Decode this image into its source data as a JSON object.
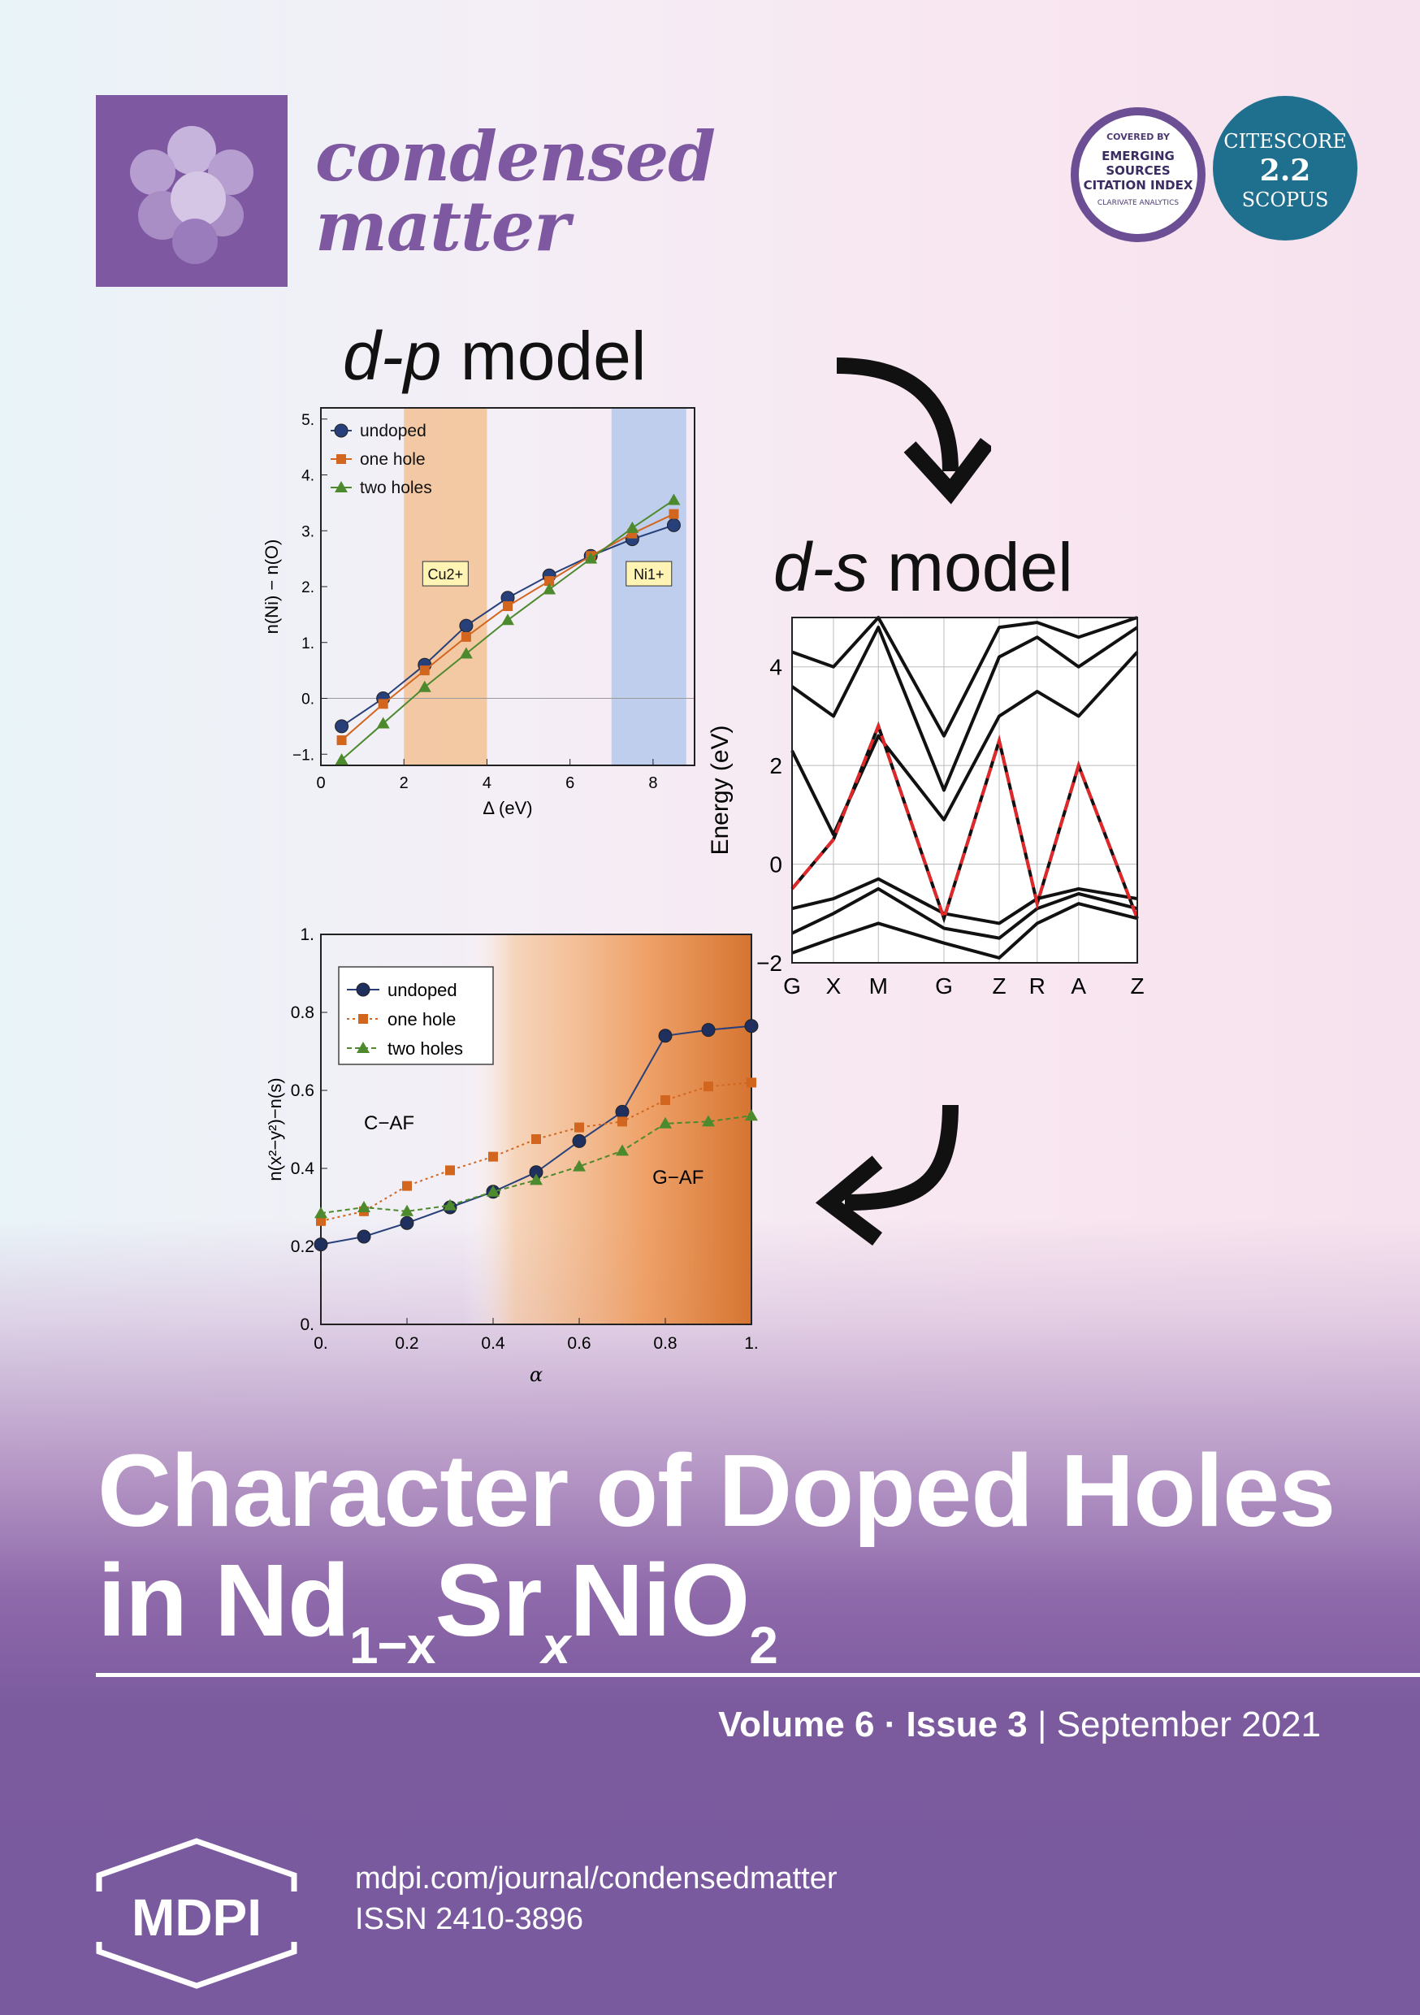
{
  "journal": {
    "name_line1": "condensed",
    "name_line2": "matter"
  },
  "badges": {
    "esci": {
      "top": "COVERED BY",
      "l1": "EMERGING",
      "l2": "SOURCES",
      "l3": "CITATION INDEX",
      "bottom": "CLARIVATE ANALYTICS"
    },
    "citescore": {
      "label": "CITESCORE",
      "value": "2.2",
      "source": "SCOPUS"
    }
  },
  "panels": {
    "dp_title_italic": "d-p",
    "dp_title_rest": " model",
    "ds_title_italic": "d-s",
    "ds_title_rest": " model"
  },
  "chart_data": [
    {
      "type": "line",
      "title": "d-p model",
      "xlabel": "Δ (eV)",
      "ylabel": "n(Ni) − n(O)",
      "xlim": [
        0,
        9
      ],
      "ylim": [
        -1.2,
        5.2
      ],
      "xticks": [
        "0",
        "2",
        "4",
        "6",
        "8"
      ],
      "yticks": [
        "−1.",
        "0.",
        "1.",
        "2.",
        "3.",
        "4.",
        "5."
      ],
      "x": [
        0.5,
        1.5,
        2.5,
        3.5,
        4.5,
        5.5,
        6.5,
        7.5,
        8.5
      ],
      "series": [
        {
          "name": "undoped",
          "color": "#27407a",
          "marker": "circle",
          "values": [
            -0.5,
            0.0,
            0.6,
            1.3,
            1.8,
            2.2,
            2.55,
            2.85,
            3.1
          ]
        },
        {
          "name": "one hole",
          "color": "#d2661f",
          "marker": "square",
          "values": [
            -0.75,
            -0.1,
            0.5,
            1.1,
            1.65,
            2.1,
            2.55,
            2.95,
            3.3
          ]
        },
        {
          "name": "two holes",
          "color": "#4d8a2e",
          "marker": "triangle",
          "values": [
            -1.1,
            -0.45,
            0.2,
            0.8,
            1.4,
            1.95,
            2.5,
            3.05,
            3.55
          ]
        }
      ],
      "regions": [
        {
          "label": "Cu2+",
          "from": 2,
          "to": 4,
          "color": "#f2c295"
        },
        {
          "label": "Ni1+",
          "from": 7,
          "to": 8.8,
          "color": "#b6c9ec"
        }
      ]
    },
    {
      "type": "line",
      "title": "d-s model",
      "ylabel": "Energy (eV)",
      "ylim": [
        -2,
        5
      ],
      "yticks": [
        "4",
        "2",
        "0",
        "−2"
      ],
      "xticks": [
        "G",
        "X",
        "M",
        "G",
        "Z",
        "R",
        "A",
        "Z"
      ],
      "series": [
        {
          "name": "bands",
          "color": "#111111"
        },
        {
          "name": "fit",
          "color": "#e0282a",
          "style": "dashed"
        }
      ]
    },
    {
      "type": "line",
      "xlabel": "α",
      "ylabel": "n(x²−y²)−n(s)",
      "xlim": [
        0,
        1
      ],
      "ylim": [
        0,
        1
      ],
      "xticks": [
        "0.",
        "0.2",
        "0.4",
        "0.6",
        "0.8",
        "1."
      ],
      "yticks": [
        "0.",
        "0.2",
        "0.4",
        "0.6",
        "0.8",
        "1."
      ],
      "x": [
        0,
        0.1,
        0.2,
        0.3,
        0.4,
        0.5,
        0.6,
        0.7,
        0.8,
        0.9,
        1.0
      ],
      "series": [
        {
          "name": "undoped",
          "color": "#27407a",
          "marker": "circle",
          "values": [
            0.205,
            0.225,
            0.26,
            0.3,
            0.34,
            0.39,
            0.47,
            0.545,
            0.74,
            0.755,
            0.765
          ]
        },
        {
          "name": "one hole",
          "color": "#d2661f",
          "marker": "square",
          "values": [
            0.265,
            0.29,
            0.355,
            0.395,
            0.43,
            0.475,
            0.505,
            0.52,
            0.575,
            0.61,
            0.62
          ]
        },
        {
          "name": "two holes",
          "color": "#4d8a2e",
          "marker": "triangle",
          "values": [
            0.285,
            0.3,
            0.29,
            0.305,
            0.34,
            0.37,
            0.405,
            0.445,
            0.515,
            0.52,
            0.535
          ]
        }
      ],
      "annotations": [
        "C−AF",
        "G−AF"
      ]
    }
  ],
  "article": {
    "title_line1": "Character of Doped Holes",
    "title_in": "in Nd",
    "sub1": "1−x",
    "sr": "Sr",
    "sub2": "x",
    "nio": "NiO",
    "sub3": "2"
  },
  "issue": {
    "volume": "Volume 6",
    "sep": " · ",
    "number": "Issue 3",
    "bar": " | ",
    "date": "September 2021"
  },
  "footer": {
    "publisher": "MDPI",
    "url": "mdpi.com/journal/condensedmatter",
    "issn": "ISSN 2410-3896"
  }
}
